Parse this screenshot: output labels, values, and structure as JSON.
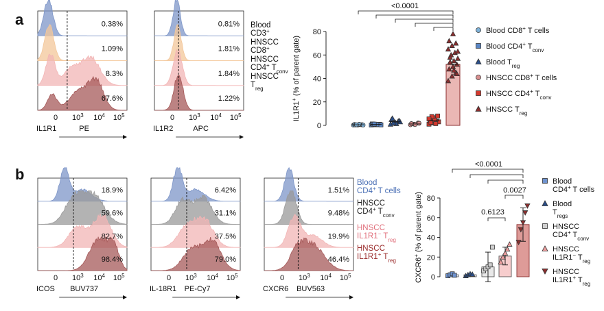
{
  "panel_labels": {
    "a": "a",
    "b": "b"
  },
  "colors": {
    "blood_cd8": "#7fb2d8",
    "blood_cd4": "#5b86c4",
    "blood_treg": "#2b4f8a",
    "hnscc_cd8": "#d98f8f",
    "hnscc_cd4": "#d43a2f",
    "hnscc_treg": "#8b2e2e",
    "bar_fill": "#d97c76",
    "bar_stroke": "#8b2e2e",
    "hist_blue": "#7e96c8",
    "hist_orange": "#f3c79a",
    "hist_pink": "#f2b5b5",
    "hist_brown": "#a65a5a",
    "hist_grey": "#9a9a9a",
    "label_blue": "#4a6fb5",
    "label_pink": "#e06e7a",
    "label_red": "#9a2b2b"
  },
  "flow_a": {
    "plots": [
      {
        "marker": "IL1R1",
        "fluor": "PE",
        "percents": [
          "0.38%",
          "1.09%",
          "8.3%",
          "67.6%"
        ]
      },
      {
        "marker": "IL1R2",
        "fluor": "APC",
        "percents": [
          "0.81%",
          "1.81%",
          "1.84%",
          "1.22%"
        ]
      }
    ],
    "tick_labels": [
      "0",
      "10",
      "3",
      "10",
      "4",
      "10",
      "5"
    ],
    "rows": [
      {
        "line1": "Blood",
        "line2": "CD3",
        "line2_sup": "+"
      },
      {
        "line1": "HNSCC",
        "line2": "CD8",
        "line2_sup": "+"
      },
      {
        "line1": "HNSCC",
        "line2": "CD4",
        "line2_sup": "+",
        "line2_tail": " T",
        "line2_sub": "conv"
      },
      {
        "line1": "HNSCC",
        "line2": "T",
        "line2_sub": "reg"
      }
    ]
  },
  "flow_b": {
    "plots": [
      {
        "marker": "ICOS",
        "fluor": "BUV737",
        "percents": [
          "18.9%",
          "59.6%",
          "82.7%",
          "98.4%"
        ]
      },
      {
        "marker": "IL-18R1",
        "fluor": "PE-Cy7",
        "percents": [
          "6.42%",
          "31.1%",
          "37.5%",
          "79.0%"
        ]
      },
      {
        "marker": "CXCR6",
        "fluor": "BUV563",
        "percents": [
          "1.51%",
          "9.48%",
          "19.9%",
          "46.4%"
        ]
      }
    ],
    "rows": [
      {
        "line1": "Blood",
        "line2": "CD4",
        "line2_sup": "+",
        "line2_tail": " T cells"
      },
      {
        "line1": "HNSCC",
        "line2": "CD4",
        "line2_sup": "+",
        "line2_tail": " T",
        "line2_sub": "conv"
      },
      {
        "line1": "HNSCC",
        "line2": "IL1R1",
        "line2_sup": "−",
        "line2_tail": " T",
        "line2_sub": "reg"
      },
      {
        "line1": "HNSCC",
        "line2": "IL1R1",
        "line2_sup": "+",
        "line2_tail": " T",
        "line2_sub": "reg"
      }
    ]
  },
  "chart_data": [
    {
      "type": "bar",
      "ylabel": "IL1R1+ (% of parent gate)",
      "ylabel_main": "IL1R1",
      "ylabel_sup": "+",
      "ylabel_tail": " (% of parent gate)",
      "ylim": [
        0,
        80
      ],
      "yticks": [
        0,
        20,
        40,
        60,
        80
      ],
      "categories": [
        "Blood CD8+ T cells",
        "Blood CD4+ Tconv",
        "Blood Treg",
        "HNSCC CD8+ T cells",
        "HNSCC CD4+ Tconv",
        "HNSCC Treg"
      ],
      "legend": [
        {
          "main": "Blood CD8",
          "sup": "+",
          "tail": " T cells"
        },
        {
          "main": "Blood CD4",
          "sup": "+",
          "tail": " T",
          "sub": "conv"
        },
        {
          "main": "Blood T",
          "sub": "reg"
        },
        {
          "main": "HNSCC CD8",
          "sup": "+",
          "tail": " T cells"
        },
        {
          "main": "HNSCC CD4",
          "sup": "+",
          "tail": " T",
          "sub": "conv"
        },
        {
          "main": "HNSCC T",
          "sub": "reg"
        }
      ],
      "legend_position": "right",
      "means": [
        0.5,
        0.8,
        3.0,
        1.2,
        4.0,
        52.0
      ],
      "points": [
        [
          0.2,
          0.3,
          0.5,
          0.8,
          0.4,
          0.6,
          0.3,
          0.9,
          0.2,
          0.5
        ],
        [
          0.3,
          0.6,
          0.9,
          1.2,
          0.5,
          0.8,
          1.0,
          0.7,
          0.4,
          1.1
        ],
        [
          1.0,
          2.0,
          3.5,
          5.0,
          2.5,
          4.0,
          6.0,
          1.5,
          3.0,
          2.2
        ],
        [
          0.5,
          1.0,
          2.0,
          1.5,
          0.8,
          1.8
        ],
        [
          1.0,
          2.0,
          3.5,
          5.0,
          6.5,
          8.0,
          2.5,
          4.5,
          3.0,
          7.5,
          1.5,
          5.5
        ],
        [
          38,
          42,
          45,
          48,
          50,
          52,
          54,
          55,
          57,
          60,
          62,
          65,
          68,
          70,
          72,
          78,
          44,
          58,
          47,
          63
        ]
      ],
      "bar_categories": [
        "HNSCC Treg"
      ],
      "significance": {
        "label": "<0.0001",
        "comparisons": [
          "Blood CD8+ T cells",
          "Blood CD4+ Tconv",
          "Blood Treg",
          "HNSCC CD8+ T cells",
          "HNSCC CD4+ Tconv"
        ],
        "target": "HNSCC Treg"
      }
    },
    {
      "type": "bar",
      "ylabel": "CXCR6+ (% of parent gate)",
      "ylabel_main": "CXCR6",
      "ylabel_sup": "+",
      "ylabel_tail": " (% of parent gate)",
      "ylim": [
        0,
        80
      ],
      "yticks": [
        0,
        20,
        40,
        60,
        80
      ],
      "categories": [
        "Blood CD4+ T cells",
        "Blood Tregs",
        "HNSCC CD4+ Tconv",
        "HNSCC IL1R1− Treg",
        "HNSCC IL1R1+ Treg"
      ],
      "legend": [
        {
          "line1": "Blood",
          "line2": "CD4",
          "line2_sup": "+",
          "line2_tail": " T cells"
        },
        {
          "line1": "Blood",
          "line2": "T",
          "line2_sub": "regs"
        },
        {
          "line1": "HNSCC",
          "line2": "CD4",
          "line2_sup": "+",
          "line2_tail": " T",
          "line2_sub": "conv"
        },
        {
          "line1": "HNSCC",
          "line2": "IL1R1",
          "line2_sup": "−",
          "line2_tail": " T",
          "line2_sub": "reg"
        },
        {
          "line1": "HNSCC",
          "line2": "IL1R1",
          "line2_sup": "+",
          "line2_tail": " T",
          "line2_sub": "reg"
        }
      ],
      "legend_position": "right",
      "means": [
        2,
        2,
        10,
        21,
        53
      ],
      "err": [
        0,
        0,
        15,
        9,
        17
      ],
      "points": [
        [
          1,
          2,
          3,
          1.5
        ],
        [
          1,
          2,
          3,
          2.5
        ],
        [
          6,
          8,
          10,
          12,
          30
        ],
        [
          15,
          20,
          24,
          28,
          33
        ],
        [
          35,
          48,
          55,
          65,
          72
        ]
      ],
      "significance": [
        {
          "label": "<0.0001",
          "comparisons": [
            "Blood CD4+ T cells",
            "Blood Tregs",
            "HNSCC CD4+ Tconv"
          ],
          "target": "HNSCC IL1R1+ Treg"
        },
        {
          "label": "0.0027",
          "comparisons": [
            "HNSCC IL1R1− Treg"
          ],
          "target": "HNSCC IL1R1+ Treg"
        },
        {
          "label": "0.6123",
          "comparisons": [
            "HNSCC CD4+ Tconv"
          ],
          "target": "HNSCC IL1R1− Treg"
        }
      ]
    }
  ]
}
